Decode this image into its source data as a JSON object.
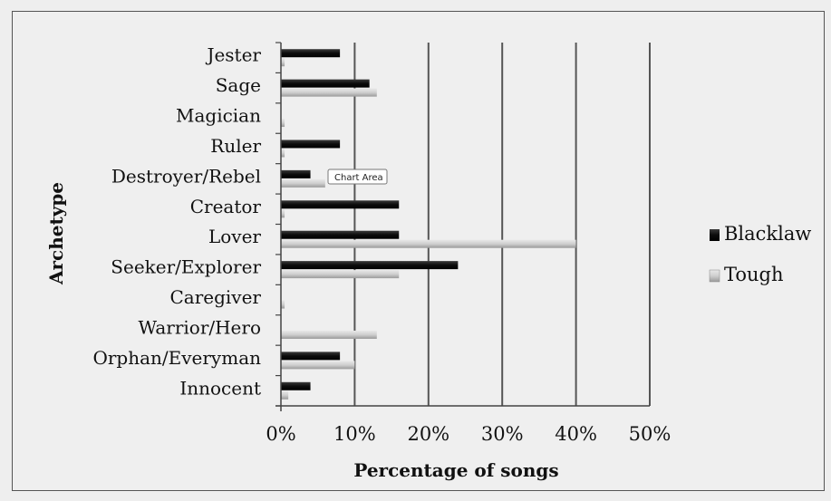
{
  "chart_data": {
    "type": "bar",
    "orientation": "horizontal",
    "categories": [
      "Jester",
      "Sage",
      "Magician",
      "Ruler",
      "Destroyer/Rebel",
      "Creator",
      "Lover",
      "Seeker/Explorer",
      "Caregiver",
      "Warrior/Hero",
      "Orphan/Everyman",
      "Innocent"
    ],
    "series": [
      {
        "name": "Blacklaw",
        "values": [
          8,
          12,
          0,
          8,
          4,
          16,
          16,
          24,
          0,
          0,
          8,
          4
        ],
        "color": "#111111"
      },
      {
        "name": "Tough",
        "values": [
          0.5,
          13,
          0.5,
          0.5,
          6,
          0.5,
          40,
          16,
          0.5,
          13,
          10,
          1
        ],
        "color": "#c8c8c8"
      }
    ],
    "xlabel": "Percentage of songs",
    "ylabel": "Archetype",
    "xlim": [
      0,
      50
    ],
    "xticks": [
      "0%",
      "10%",
      "20%",
      "30%",
      "40%",
      "50%"
    ],
    "grid": "vertical",
    "legend": "right"
  },
  "tooltip": "Chart Area"
}
